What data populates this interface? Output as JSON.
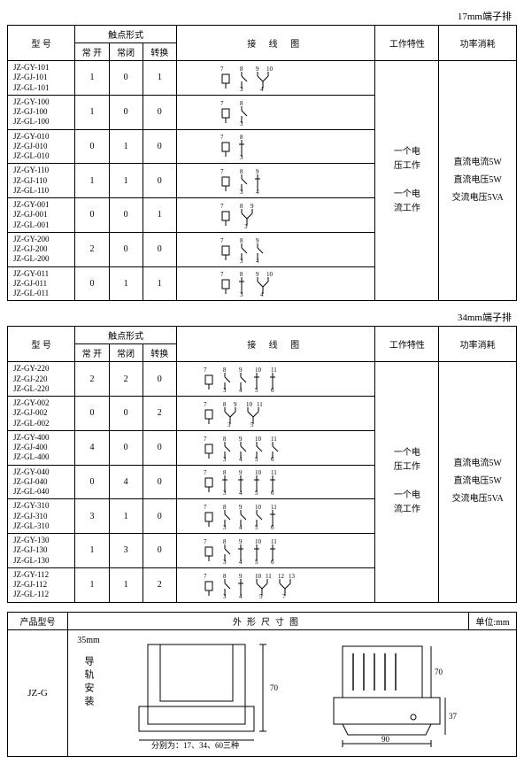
{
  "banner17": "17mm端子排",
  "banner34": "34mm端子排",
  "headers": {
    "model": "型 号",
    "contactGroup": "触点形式",
    "no": "常 开",
    "nc": "常闭",
    "co": "转换",
    "wiring": "接 线 图",
    "workChar": "工作特性",
    "power": "功率消耗"
  },
  "workText": {
    "a": "一个电",
    "b": "压工作",
    "c": "一个电",
    "d": "流工作"
  },
  "powerText": {
    "a": "直流电流5W",
    "b": "直流电压5W",
    "c": "交流电压5VA"
  },
  "t17": [
    {
      "m": [
        "JZ-GY-101",
        "JZ-GJ-101",
        "JZ-GL-101"
      ],
      "no": "1",
      "nc": "0",
      "co": "1"
    },
    {
      "m": [
        "JZ-GY-100",
        "JZ-GJ-100",
        "JZ-GL-100"
      ],
      "no": "1",
      "nc": "0",
      "co": "0"
    },
    {
      "m": [
        "JZ-GY-010",
        "JZ-GJ-010",
        "JZ-GL-010"
      ],
      "no": "0",
      "nc": "1",
      "co": "0"
    },
    {
      "m": [
        "JZ-GY-110",
        "JZ-GJ-110",
        "JZ-GL-110"
      ],
      "no": "1",
      "nc": "1",
      "co": "0"
    },
    {
      "m": [
        "JZ-GY-001",
        "JZ-GJ-001",
        "JZ-GL-001"
      ],
      "no": "0",
      "nc": "0",
      "co": "1"
    },
    {
      "m": [
        "JZ-GY-200",
        "JZ-GJ-200",
        "JZ-GL-200"
      ],
      "no": "2",
      "nc": "0",
      "co": "0"
    },
    {
      "m": [
        "JZ-GY-011",
        "JZ-GJ-011",
        "JZ-GL-011"
      ],
      "no": "0",
      "nc": "1",
      "co": "1"
    }
  ],
  "t34": [
    {
      "m": [
        "JZ-GY-220",
        "JZ-GJ-220",
        "JZ-GL-220"
      ],
      "no": "2",
      "nc": "2",
      "co": "0"
    },
    {
      "m": [
        "JZ-GY-002",
        "JZ-GJ-002",
        "JZ-GL-002"
      ],
      "no": "0",
      "nc": "0",
      "co": "2"
    },
    {
      "m": [
        "JZ-GY-400",
        "JZ-GJ-400",
        "JZ-GL-400"
      ],
      "no": "4",
      "nc": "0",
      "co": "0"
    },
    {
      "m": [
        "JZ-GY-040",
        "JZ-GJ-040",
        "JZ-GL-040"
      ],
      "no": "0",
      "nc": "4",
      "co": "0"
    },
    {
      "m": [
        "JZ-GY-310",
        "JZ-GJ-310",
        "JZ-GL-310"
      ],
      "no": "3",
      "nc": "1",
      "co": "0"
    },
    {
      "m": [
        "JZ-GY-130",
        "JZ-GJ-130",
        "JZ-GL-130"
      ],
      "no": "1",
      "nc": "3",
      "co": "0"
    },
    {
      "m": [
        "JZ-GY-112",
        "JZ-GJ-112",
        "JZ-GL-112"
      ],
      "no": "1",
      "nc": "1",
      "co": "2"
    }
  ],
  "dimHeaders": {
    "model": "产品型号",
    "fig": "外形尺寸图",
    "unit": "单位:mm"
  },
  "dimModel": "JZ-G",
  "dim": {
    "rail": "35mm",
    "mount": "导轨安装",
    "note": "分别为：17、34、60三种",
    "h": "70",
    "w": "90",
    "h2": "70",
    "d": "37"
  },
  "colors": {
    "line": "#000000"
  },
  "colWidths": {
    "model": 68,
    "ct": 34,
    "wire": 200,
    "work": 64,
    "power": 78
  }
}
